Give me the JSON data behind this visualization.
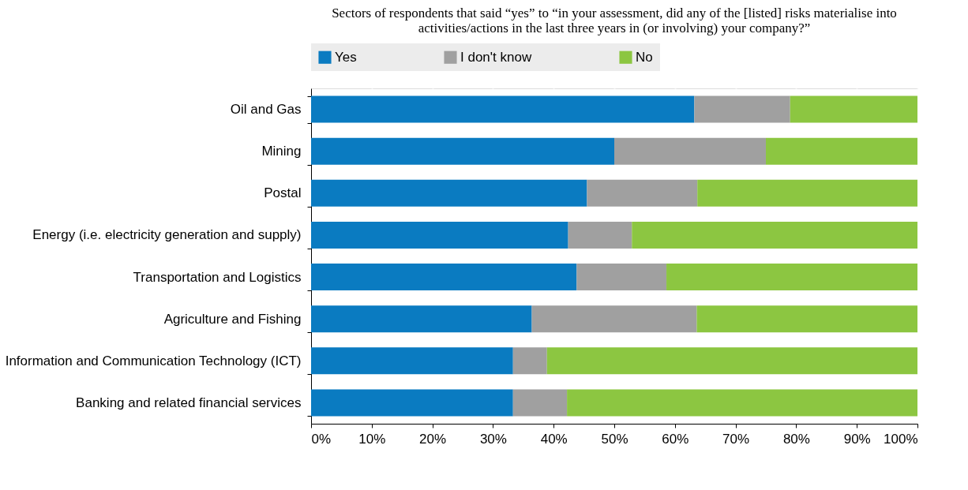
{
  "chart_data": {
    "type": "bar",
    "orientation": "horizontal",
    "stacked": true,
    "title": "Sectors of respondents that said “yes” to “in your assessment, did any of the [listed] risks materialise into\nactivities/actions in the last three years in (or involving) your company?”",
    "categories": [
      "Oil and Gas",
      "Mining",
      "Postal",
      "Energy (i.e. electricity generation and supply)",
      "Transportation and Logistics",
      "Agriculture and Fishing",
      "Information and Communication Technology (ICT)",
      "Banking and related financial services"
    ],
    "series": [
      {
        "name": "Yes",
        "color": "#0a7bc1",
        "values": [
          63.2,
          50,
          45.5,
          42.4,
          43.8,
          36.4,
          33.3,
          33.3
        ]
      },
      {
        "name": "I don't know",
        "color": "#a0a0a0",
        "values": [
          15.8,
          25,
          18.2,
          10.5,
          14.8,
          27.2,
          5.6,
          8.9
        ]
      },
      {
        "name": "No",
        "color": "#8cc641",
        "values": [
          21.0,
          25,
          36.3,
          47.1,
          41.4,
          36.4,
          61.1,
          57.8
        ]
      }
    ],
    "xlim": [
      0,
      100
    ],
    "xticks": [
      {
        "value": 0,
        "label": "0%"
      },
      {
        "value": 10,
        "label": "10%"
      },
      {
        "value": 20,
        "label": "20%"
      },
      {
        "value": 30,
        "label": "30%"
      },
      {
        "value": 40,
        "label": "40%"
      },
      {
        "value": 50,
        "label": "50%"
      },
      {
        "value": 60,
        "label": "60%"
      },
      {
        "value": 70,
        "label": "70%"
      },
      {
        "value": 80,
        "label": "80%"
      },
      {
        "value": 90,
        "label": "90%"
      },
      {
        "value": 100,
        "label": "100%"
      }
    ],
    "grid": "x",
    "legend": "top"
  }
}
